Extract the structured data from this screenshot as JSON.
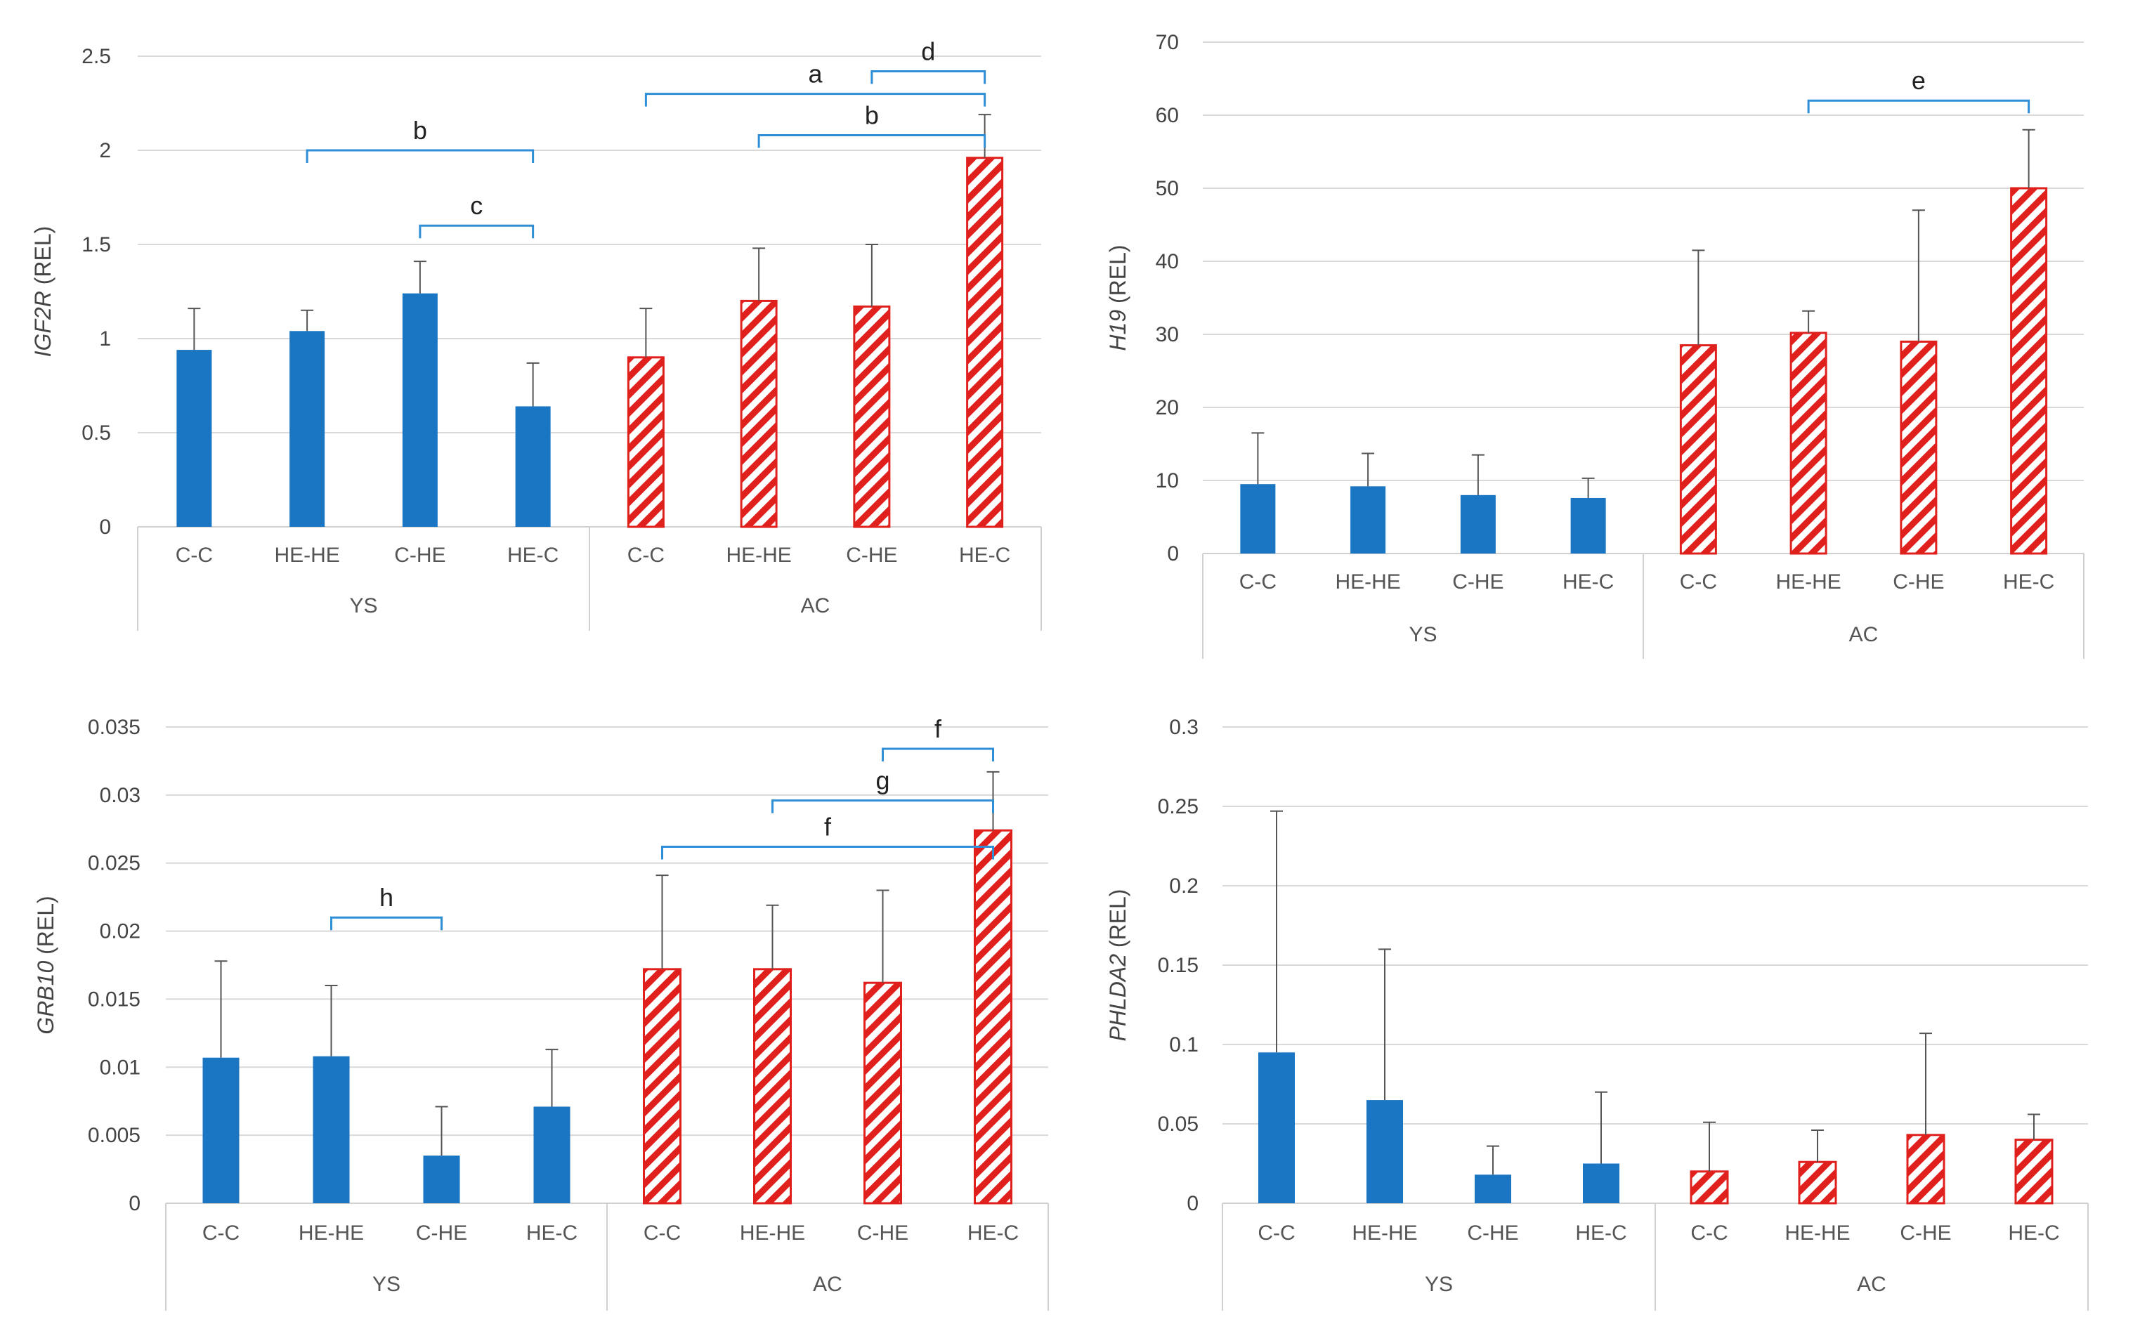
{
  "chart_data": [
    {
      "id": "igf2r",
      "type": "bar",
      "title": "",
      "ylabel_gene": "IGF2R",
      "ylabel_unit": " (REL)",
      "ylim": [
        0,
        2.5
      ],
      "yticks": [
        0,
        0.5,
        1,
        1.5,
        2,
        2.5
      ],
      "ytick_labels": [
        "0",
        "0.5",
        "1",
        "1.5",
        "2",
        "2.5"
      ],
      "categories": [
        "C-C",
        "HE-HE",
        "C-HE",
        "HE-C",
        "C-C",
        "HE-HE",
        "C-HE",
        "HE-C"
      ],
      "groups": [
        {
          "label": "YS",
          "style": "solid",
          "color": "#1a75c2"
        },
        {
          "label": "AC",
          "style": "hatched",
          "color": "#e0201c"
        }
      ],
      "values": [
        0.94,
        1.04,
        1.24,
        0.64,
        0.9,
        1.2,
        1.17,
        1.96
      ],
      "errors": [
        0.22,
        0.11,
        0.17,
        0.23,
        0.26,
        0.28,
        0.33,
        0.23
      ],
      "significance": [
        {
          "from": 1,
          "to": 3,
          "label": "b",
          "level": 2.0
        },
        {
          "from": 2,
          "to": 3,
          "label": "c",
          "level": 1.6
        },
        {
          "from": 4,
          "to": 7,
          "label": "a",
          "level": 2.3
        },
        {
          "from": 5,
          "to": 7,
          "label": "b",
          "level": 2.08
        },
        {
          "from": 6,
          "to": 7,
          "label": "d",
          "level": 2.42
        }
      ]
    },
    {
      "id": "h19",
      "type": "bar",
      "title": "",
      "ylabel_gene": "H19",
      "ylabel_unit": " (REL)",
      "ylim": [
        0,
        70
      ],
      "yticks": [
        0,
        10,
        20,
        30,
        40,
        50,
        60,
        70
      ],
      "ytick_labels": [
        "0",
        "10",
        "20",
        "30",
        "40",
        "50",
        "60",
        "70"
      ],
      "categories": [
        "C-C",
        "HE-HE",
        "C-HE",
        "HE-C",
        "C-C",
        "HE-HE",
        "C-HE",
        "HE-C"
      ],
      "groups": [
        {
          "label": "YS",
          "style": "solid",
          "color": "#1a75c2"
        },
        {
          "label": "AC",
          "style": "hatched",
          "color": "#e0201c"
        }
      ],
      "values": [
        9.5,
        9.2,
        8.0,
        7.6,
        28.5,
        30.2,
        29.0,
        50.0
      ],
      "errors": [
        7.0,
        4.5,
        5.5,
        2.7,
        13.0,
        3.0,
        18.0,
        8.0
      ],
      "significance": [
        {
          "from": 5,
          "to": 7,
          "label": "e",
          "level": 62.0
        }
      ]
    },
    {
      "id": "grb10",
      "type": "bar",
      "title": "",
      "ylabel_gene": "GRB10",
      "ylabel_unit": " (REL)",
      "ylim": [
        0,
        0.035
      ],
      "yticks": [
        0,
        0.005,
        0.01,
        0.015,
        0.02,
        0.025,
        0.03,
        0.035
      ],
      "ytick_labels": [
        "0",
        "0.005",
        "0.01",
        "0.015",
        "0.02",
        "0.025",
        "0.03",
        "0.035"
      ],
      "categories": [
        "C-C",
        "HE-HE",
        "C-HE",
        "HE-C",
        "C-C",
        "HE-HE",
        "C-HE",
        "HE-C"
      ],
      "groups": [
        {
          "label": "YS",
          "style": "solid",
          "color": "#1a75c2"
        },
        {
          "label": "AC",
          "style": "hatched",
          "color": "#e0201c"
        }
      ],
      "values": [
        0.0107,
        0.0108,
        0.0035,
        0.0071,
        0.0172,
        0.0172,
        0.0162,
        0.0274
      ],
      "errors": [
        0.0071,
        0.0052,
        0.0036,
        0.0042,
        0.0069,
        0.0047,
        0.0068,
        0.0043
      ],
      "significance": [
        {
          "from": 1,
          "to": 2,
          "label": "h",
          "level": 0.021
        },
        {
          "from": 4,
          "to": 7,
          "label": "f",
          "level": 0.0262
        },
        {
          "from": 5,
          "to": 7,
          "label": "g",
          "level": 0.0296
        },
        {
          "from": 6,
          "to": 7,
          "label": "f",
          "level": 0.0334
        }
      ]
    },
    {
      "id": "phlda2",
      "type": "bar",
      "title": "",
      "ylabel_gene": "PHLDA2",
      "ylabel_unit": " (REL)",
      "ylim": [
        0,
        0.3
      ],
      "yticks": [
        0,
        0.05,
        0.1,
        0.15,
        0.2,
        0.25,
        0.3
      ],
      "ytick_labels": [
        "0",
        "0.05",
        "0.1",
        "0.15",
        "0.2",
        "0.25",
        "0.3"
      ],
      "categories": [
        "C-C",
        "HE-HE",
        "C-HE",
        "HE-C",
        "C-C",
        "HE-HE",
        "C-HE",
        "HE-C"
      ],
      "groups": [
        {
          "label": "YS",
          "style": "solid",
          "color": "#1a75c2"
        },
        {
          "label": "AC",
          "style": "hatched",
          "color": "#e0201c"
        }
      ],
      "values": [
        0.095,
        0.065,
        0.018,
        0.025,
        0.02,
        0.026,
        0.043,
        0.04
      ],
      "errors": [
        0.152,
        0.095,
        0.018,
        0.045,
        0.031,
        0.02,
        0.064,
        0.016
      ],
      "significance": []
    }
  ]
}
